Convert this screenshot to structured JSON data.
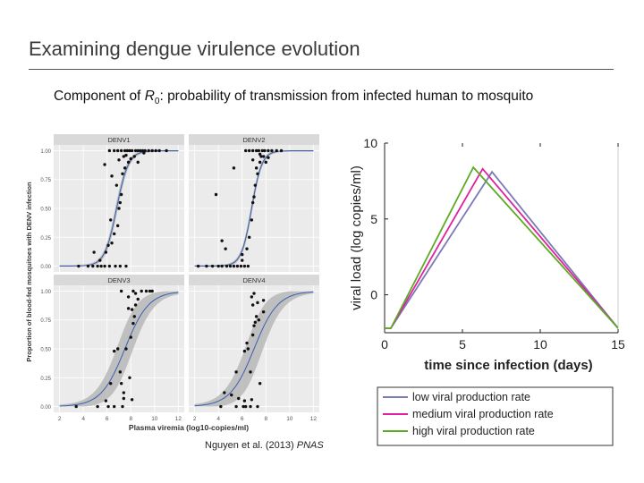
{
  "slide": {
    "title": "Examining dengue virulence evolution",
    "subtitle_pre": "Component of ",
    "subtitle_r": "R",
    "subtitle_sub": "0",
    "subtitle_post": ": probability of transmission from infected human to mosquito",
    "citation_authors": "Nguyen et al. (2013) ",
    "citation_journal": "PNAS"
  },
  "colors": {
    "panel_bg": "#ebebeb",
    "strip_bg": "#d9d9d9",
    "grid": "#ffffff",
    "ribbon": "#b0b0b0",
    "fit_line": "#3a5fb0",
    "point": "#111111",
    "low": "#7b7bb5",
    "medium": "#e020a0",
    "high": "#5cab25"
  },
  "chart_data": [
    {
      "type": "scatter",
      "title": "",
      "xlabel": "Plasma viremia (log10-copies/ml)",
      "ylabel": "Proportion of blood-fed mosquitoes with DENV infection",
      "xlim": [
        1.5,
        12.5
      ],
      "ylim": [
        -0.05,
        1.05
      ],
      "xticks": [
        "2",
        "4",
        "6",
        "8",
        "10",
        "12"
      ],
      "yticks": [
        "0.00",
        "0.25",
        "0.50",
        "0.75",
        "1.00"
      ],
      "panels": [
        {
          "name": "DENV1",
          "fit": {
            "midpoint": 6.8,
            "slope": 2.0
          },
          "ribbon_width": 0.05,
          "points": [
            [
              3.6,
              0
            ],
            [
              4.4,
              0
            ],
            [
              4.8,
              0
            ],
            [
              5.2,
              0
            ],
            [
              5.5,
              0
            ],
            [
              5.8,
              0
            ],
            [
              6.2,
              0
            ],
            [
              6.7,
              0
            ],
            [
              7.1,
              0
            ],
            [
              7.6,
              0
            ],
            [
              5.4,
              0.05
            ],
            [
              5.9,
              0.12
            ],
            [
              6.1,
              0.18
            ],
            [
              6.4,
              0.2
            ],
            [
              6.6,
              0.28
            ],
            [
              6.9,
              0.35
            ],
            [
              7.0,
              0.5
            ],
            [
              7.1,
              0.55
            ],
            [
              7.2,
              0.62
            ],
            [
              6.8,
              0.7
            ],
            [
              7.3,
              0.8
            ],
            [
              7.5,
              0.85
            ],
            [
              7.8,
              0.9
            ],
            [
              7.4,
              0.95
            ],
            [
              6.2,
              1
            ],
            [
              6.6,
              1
            ],
            [
              6.9,
              1
            ],
            [
              7.2,
              1
            ],
            [
              7.5,
              1
            ],
            [
              7.7,
              1
            ],
            [
              7.9,
              1
            ],
            [
              8.1,
              1
            ],
            [
              8.4,
              1
            ],
            [
              8.6,
              1
            ],
            [
              8.8,
              1
            ],
            [
              9.0,
              1
            ],
            [
              9.2,
              1
            ],
            [
              9.5,
              1
            ],
            [
              9.8,
              1
            ],
            [
              10.1,
              1
            ],
            [
              10.4,
              1
            ],
            [
              11.0,
              1
            ],
            [
              8.3,
              0.95
            ],
            [
              8.6,
              0.9
            ],
            [
              7.6,
              0.96
            ],
            [
              8.0,
              0.93
            ],
            [
              9.1,
              0.98
            ],
            [
              7.0,
              0.92
            ],
            [
              6.4,
              0.78
            ],
            [
              5.8,
              0.88
            ],
            [
              4.9,
              0.12
            ],
            [
              6.3,
              0.4
            ]
          ]
        },
        {
          "name": "DENV2",
          "fit": {
            "midpoint": 6.8,
            "slope": 2.3
          },
          "ribbon_width": 0.04,
          "points": [
            [
              2.3,
              0
            ],
            [
              3.0,
              0
            ],
            [
              3.5,
              0
            ],
            [
              4.0,
              0
            ],
            [
              4.3,
              0
            ],
            [
              4.7,
              0
            ],
            [
              5.0,
              0
            ],
            [
              5.3,
              0
            ],
            [
              5.6,
              0
            ],
            [
              5.9,
              0
            ],
            [
              6.2,
              0
            ],
            [
              6.5,
              0
            ],
            [
              6.0,
              0.05
            ],
            [
              6.4,
              0.15
            ],
            [
              6.6,
              0.25
            ],
            [
              6.8,
              0.4
            ],
            [
              6.9,
              0.55
            ],
            [
              7.0,
              0.6
            ],
            [
              7.1,
              0.7
            ],
            [
              7.3,
              0.8
            ],
            [
              7.5,
              0.9
            ],
            [
              7.6,
              0.95
            ],
            [
              5.3,
              0.85
            ],
            [
              4.3,
              0.22
            ],
            [
              4.6,
              0.15
            ],
            [
              6.3,
              1
            ],
            [
              6.6,
              1
            ],
            [
              6.9,
              1
            ],
            [
              7.2,
              1
            ],
            [
              7.4,
              1
            ],
            [
              7.7,
              1
            ],
            [
              7.9,
              1
            ],
            [
              8.2,
              1
            ],
            [
              8.5,
              1
            ],
            [
              8.9,
              1
            ],
            [
              9.3,
              1
            ],
            [
              7.8,
              0.95
            ],
            [
              8.0,
              0.9
            ],
            [
              7.2,
              0.85
            ],
            [
              6.9,
              0.92
            ],
            [
              7.5,
              0.97
            ],
            [
              8.2,
              0.94
            ],
            [
              3.8,
              0.62
            ],
            [
              6.0,
              0.1
            ]
          ]
        },
        {
          "name": "DENV3",
          "fit": {
            "midpoint": 7.5,
            "slope": 1.0
          },
          "ribbon_width": 0.18,
          "points": [
            [
              3.4,
              0
            ],
            [
              5.2,
              0
            ],
            [
              6.1,
              0
            ],
            [
              6.6,
              0
            ],
            [
              7.3,
              0
            ],
            [
              5.9,
              0.05
            ],
            [
              7.4,
              0.07
            ],
            [
              8.1,
              0.06
            ],
            [
              7.4,
              0.12
            ],
            [
              7.2,
              0.2
            ],
            [
              7.9,
              0.25
            ],
            [
              6.6,
              0.48
            ],
            [
              6.9,
              0.5
            ],
            [
              7.6,
              0.5
            ],
            [
              8.0,
              0.6
            ],
            [
              8.2,
              0.72
            ],
            [
              8.3,
              0.78
            ],
            [
              8.1,
              0.84
            ],
            [
              8.4,
              0.88
            ],
            [
              8.6,
              0.93
            ],
            [
              7.8,
              0.85
            ],
            [
              8.9,
              1
            ],
            [
              9.3,
              1
            ],
            [
              9.6,
              1
            ],
            [
              9.8,
              1
            ],
            [
              8.2,
              1
            ],
            [
              7.2,
              1
            ],
            [
              7.8,
              0.95
            ],
            [
              8.4,
              0.98
            ],
            [
              6.3,
              0.2
            ],
            [
              7.1,
              0.3
            ]
          ]
        },
        {
          "name": "DENV4",
          "fit": {
            "midpoint": 7.0,
            "slope": 1.0
          },
          "ribbon_width": 0.2,
          "points": [
            [
              4.2,
              0
            ],
            [
              5.5,
              0
            ],
            [
              6.1,
              0
            ],
            [
              6.3,
              0
            ],
            [
              6.7,
              0
            ],
            [
              7.3,
              0
            ],
            [
              5.7,
              0.07
            ],
            [
              6.2,
              0.05
            ],
            [
              6.8,
              0.06
            ],
            [
              5.1,
              0.1
            ],
            [
              4.5,
              0.12
            ],
            [
              7.5,
              0.2
            ],
            [
              5.5,
              0.3
            ],
            [
              6.7,
              0.3
            ],
            [
              6.2,
              0.48
            ],
            [
              6.4,
              0.55
            ],
            [
              6.5,
              0.5
            ],
            [
              6.9,
              0.62
            ],
            [
              7.0,
              0.7
            ],
            [
              7.1,
              0.73
            ],
            [
              7.2,
              0.78
            ],
            [
              7.4,
              0.75
            ],
            [
              7.8,
              0.82
            ],
            [
              6.9,
              0.88
            ],
            [
              7.3,
              0.9
            ],
            [
              7.8,
              0.92
            ],
            [
              6.8,
              0.95
            ],
            [
              7.0,
              0.98
            ]
          ]
        }
      ]
    },
    {
      "type": "line",
      "title": "",
      "xlabel": "time since infection (days)",
      "ylabel": "viral load (log copies/ml)",
      "xlim": [
        0,
        15
      ],
      "ylim": [
        -2.5,
        10
      ],
      "xticks": [
        "0",
        "5",
        "10",
        "15"
      ],
      "yticks": [
        "0",
        "5",
        "10"
      ],
      "series": [
        {
          "name": "low viral production rate",
          "x": [
            0,
            0.4,
            6.9,
            15
          ],
          "y": [
            -2.2,
            -2.2,
            8.1,
            -2.2
          ]
        },
        {
          "name": "medium viral production rate",
          "x": [
            0,
            0.4,
            6.3,
            15
          ],
          "y": [
            -2.2,
            -2.2,
            8.3,
            -2.2
          ]
        },
        {
          "name": "high viral production rate",
          "x": [
            0,
            0.4,
            5.7,
            15
          ],
          "y": [
            -2.2,
            -2.2,
            8.4,
            -2.2
          ]
        }
      ]
    }
  ]
}
